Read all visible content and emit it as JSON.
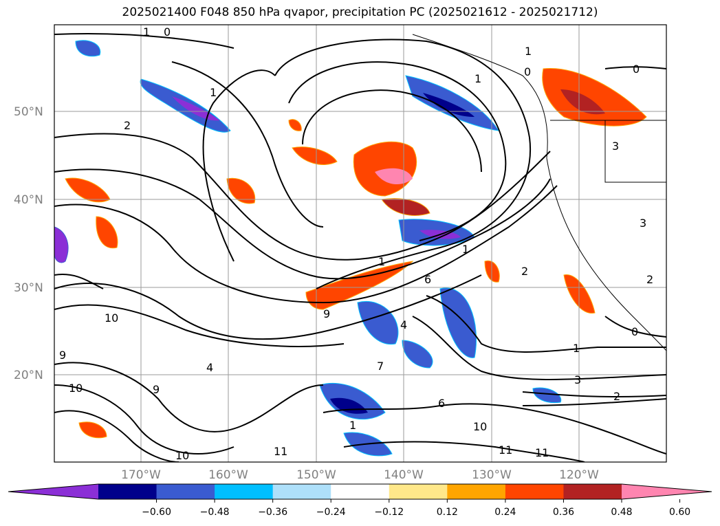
{
  "title": "2025021400 F048 850 hPa qvapor, precipitation PC (2025021612 - 2025021712)",
  "lat_labels": [
    "50°N",
    "40°N",
    "30°N",
    "20°N"
  ],
  "lon_labels": [
    "170°W",
    "160°W",
    "150°W",
    "140°W",
    "130°W",
    "120°W"
  ],
  "colorbar": {
    "ticks": [
      "−0.60",
      "−0.48",
      "−0.36",
      "−0.24",
      "−0.12",
      "0.12",
      "0.24",
      "0.36",
      "0.48",
      "0.60"
    ],
    "colors": [
      "#8b2fd6",
      "#00008b",
      "#3a5bd0",
      "#00bfff",
      "#aee0fa",
      "#ffffff",
      "#ffe88a",
      "#ffa500",
      "#ff4500",
      "#b22222",
      "#ff85b0"
    ]
  },
  "contour_labels": [
    "1",
    "0",
    "1",
    "2",
    "1",
    "1",
    "0",
    "0",
    "3",
    "1",
    "1",
    "2",
    "10",
    "9",
    "9",
    "1",
    "10",
    "9",
    "4",
    "4",
    "7",
    "6",
    "6",
    "2",
    "3",
    "11",
    "11",
    "10",
    "10",
    "11",
    "0",
    "2",
    "1",
    "3"
  ],
  "colors": {
    "purple": "#8b2fd6",
    "navy": "#00008b",
    "blue": "#3a5bd0",
    "cyan": "#00bfff",
    "lightblue": "#aee0fa",
    "yellow": "#ffe88a",
    "orange": "#ffa500",
    "redorange": "#ff4500",
    "darkred": "#b22222",
    "pink": "#ff85b0"
  }
}
